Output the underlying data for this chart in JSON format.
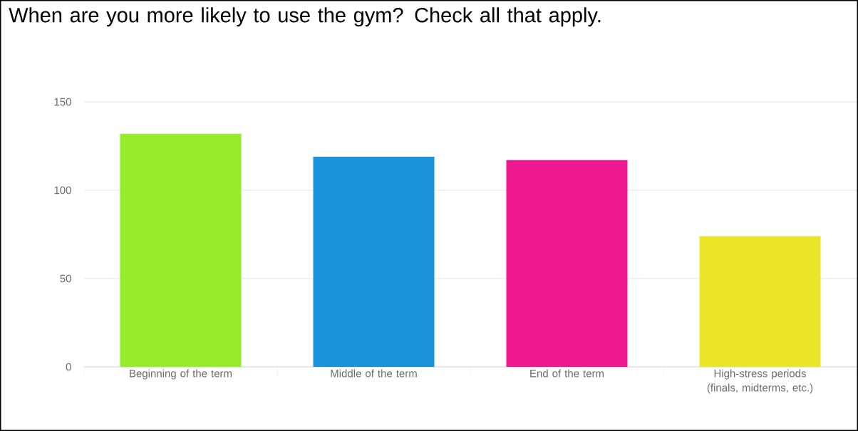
{
  "chart_data": {
    "type": "bar",
    "title": "When are you more likely to use the gym? Check all that apply.",
    "categories": [
      "Beginning of the term",
      "Middle of the term",
      "End of the term",
      "High-stress periods (finals, midterms, etc.)"
    ],
    "values": [
      132,
      119,
      117,
      74
    ],
    "colors": [
      "#96eb2a",
      "#1a93dc",
      "#f0188f",
      "#ebe52a"
    ],
    "ylim": [
      0,
      150
    ],
    "yticks": [
      0,
      50,
      100,
      150
    ],
    "grid": "y"
  }
}
